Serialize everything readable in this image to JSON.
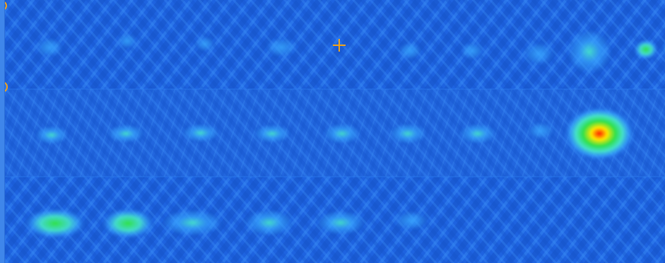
{
  "image": {
    "palette": {
      "background": "#1e63e0",
      "background_light": "#2f7ef0",
      "stripe_dark": "#1553c8",
      "stripe_light": "#3a8df5",
      "spot_low": "#38a6ff",
      "spot_mid": "#46e6c8",
      "spot_high": "#2fe04a",
      "spot_peak": "#ffe600",
      "spot_core": "#ff1a00",
      "marker": "#f2a31a"
    },
    "bands": [
      {
        "name": "top-band",
        "spots": [
          {
            "intensity": 0.18
          },
          {
            "intensity": 0.12
          },
          {
            "intensity": 0.12
          },
          {
            "intensity": 0.22
          },
          {
            "intensity": 0.15
          },
          {
            "intensity": 0.15
          },
          {
            "intensity": 0.16
          },
          {
            "intensity": 0.3
          },
          {
            "intensity": 0.72
          },
          {
            "intensity": 0.18
          }
        ]
      },
      {
        "name": "middle-band",
        "spots": [
          {
            "intensity": 0.32
          },
          {
            "intensity": 0.33
          },
          {
            "intensity": 0.33
          },
          {
            "intensity": 0.3
          },
          {
            "intensity": 0.3
          },
          {
            "intensity": 0.27
          },
          {
            "intensity": 0.27
          },
          {
            "intensity": 0.14
          },
          {
            "intensity": 1.0
          }
        ]
      },
      {
        "name": "bottom-band",
        "spots": [
          {
            "intensity": 0.58
          },
          {
            "intensity": 0.56
          },
          {
            "intensity": 0.44
          },
          {
            "intensity": 0.34
          },
          {
            "intensity": 0.28
          },
          {
            "intensity": 0.16
          }
        ]
      }
    ],
    "markers": [
      {
        "icon": "crosshair-icon"
      },
      {
        "icon": "arc-icon"
      },
      {
        "icon": "arc-icon"
      }
    ]
  }
}
